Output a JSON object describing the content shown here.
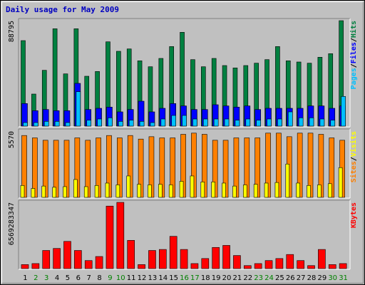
{
  "title": "Daily usage for May 2009",
  "colors": {
    "hits": "#008040",
    "files": "#0000ff",
    "pages": "#00c0ff",
    "visits": "#ffff00",
    "sites": "#ff8000",
    "kbytes": "#ff0000",
    "frame_bg": "#c0c0c0",
    "weekday_label": "#000000",
    "weekend_label": "#008000"
  },
  "chart_data": [
    {
      "type": "bar",
      "panel": "top",
      "max_label": "88795",
      "ylim": [
        0,
        88795
      ],
      "right_legend": [
        {
          "label": "Pages",
          "color": "#00c0ff"
        },
        {
          "label": "/",
          "color": "#000000"
        },
        {
          "label": "Files",
          "color": "#0000ff"
        },
        {
          "label": "/",
          "color": "#000000"
        },
        {
          "label": "Hits",
          "color": "#008040"
        }
      ],
      "series": [
        {
          "name": "Hits",
          "values": [
            72000,
            27000,
            47000,
            82000,
            44000,
            82000,
            42000,
            46000,
            71000,
            63000,
            65000,
            55000,
            50000,
            57000,
            67000,
            79000,
            56000,
            50000,
            57000,
            51000,
            49000,
            51000,
            53000,
            56000,
            67000,
            55000,
            54000,
            53000,
            58000,
            61000,
            88795
          ]
        },
        {
          "name": "Files",
          "values": [
            19000,
            13000,
            14000,
            13000,
            13000,
            36000,
            14000,
            15000,
            16000,
            12000,
            14000,
            21000,
            12000,
            15000,
            19000,
            17000,
            14000,
            14000,
            18000,
            17000,
            16000,
            17000,
            14000,
            15000,
            15000,
            15000,
            15000,
            17000,
            17000,
            15000,
            17000
          ]
        },
        {
          "name": "Pages",
          "values": [
            3000,
            3000,
            4000,
            4000,
            3000,
            29000,
            5000,
            6000,
            7000,
            4000,
            5000,
            4000,
            3000,
            6000,
            9000,
            9000,
            6000,
            6000,
            6000,
            6000,
            5000,
            6000,
            5000,
            6000,
            6000,
            12000,
            7000,
            7000,
            6000,
            5000,
            25000
          ]
        }
      ]
    },
    {
      "type": "bar",
      "panel": "middle",
      "max_label": "5570",
      "ylim": [
        0,
        5570
      ],
      "right_legend": [
        {
          "label": "Sites",
          "color": "#ff8000"
        },
        {
          "label": "/",
          "color": "#000000"
        },
        {
          "label": "Visits",
          "color": "#ffff00"
        }
      ],
      "series": [
        {
          "name": "Visits",
          "values": [
            1000,
            750,
            950,
            850,
            900,
            1500,
            900,
            1000,
            1200,
            1050,
            1800,
            1100,
            1050,
            1100,
            1050,
            1350,
            1800,
            1300,
            1300,
            1200,
            950,
            1050,
            1100,
            1200,
            1250,
            2800,
            1200,
            1000,
            1050,
            1150,
            2500
          ]
        },
        {
          "name": "Sites",
          "values": [
            5200,
            5000,
            4800,
            4800,
            4800,
            5000,
            4800,
            5000,
            5200,
            5000,
            5200,
            4900,
            5100,
            5000,
            5000,
            5300,
            5400,
            5300,
            4800,
            4800,
            5000,
            5000,
            5000,
            5400,
            5400,
            5100,
            5400,
            5400,
            5300,
            5000,
            4800
          ]
        }
      ]
    },
    {
      "type": "bar",
      "panel": "bottom",
      "max_label": "6569283347",
      "ylim": [
        0,
        6569283347
      ],
      "right_legend": [
        {
          "label": "KBytes",
          "color": "#ff0000"
        }
      ],
      "series": [
        {
          "name": "KBytes",
          "values": [
            400000000,
            500000000,
            1800000000,
            2000000000,
            2700000000,
            1800000000,
            800000000,
            1200000000,
            6200000000,
            6569283347,
            2800000000,
            400000000,
            1800000000,
            1900000000,
            3200000000,
            1900000000,
            500000000,
            1000000000,
            2100000000,
            2300000000,
            1300000000,
            300000000,
            500000000,
            800000000,
            1000000000,
            1400000000,
            800000000,
            300000000,
            1900000000,
            400000000,
            500000000
          ]
        }
      ]
    }
  ],
  "x_labels": [
    "1",
    "2",
    "3",
    "4",
    "5",
    "6",
    "7",
    "8",
    "9",
    "10",
    "11",
    "12",
    "13",
    "14",
    "15",
    "16",
    "17",
    "18",
    "19",
    "20",
    "21",
    "22",
    "23",
    "24",
    "25",
    "26",
    "27",
    "28",
    "29",
    "30",
    "31"
  ],
  "weekend_days": [
    2,
    3,
    9,
    10,
    16,
    17,
    23,
    24,
    30,
    31
  ]
}
